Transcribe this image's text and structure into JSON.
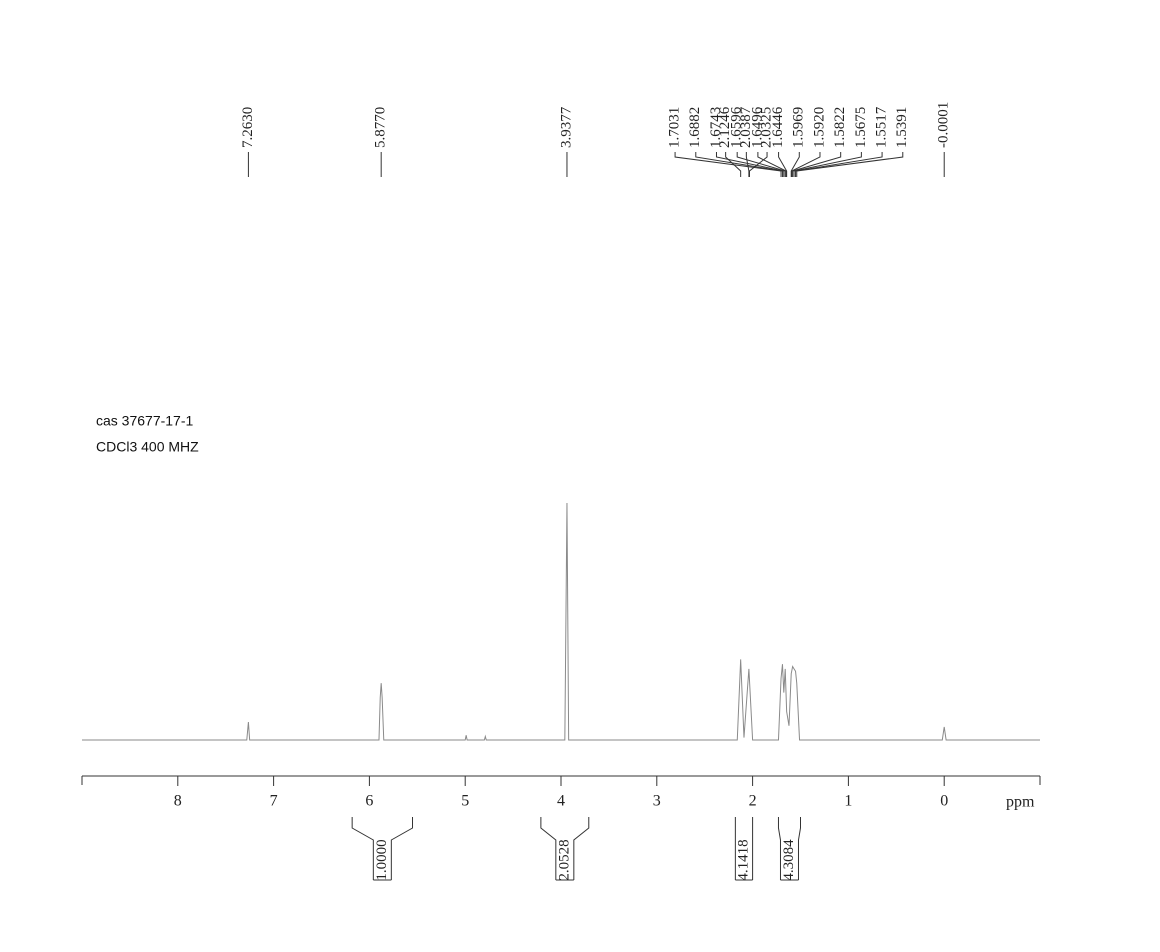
{
  "chart_data": {
    "type": "line",
    "annotations": [
      "cas  37677-17-1",
      "CDCl3 400 MHZ"
    ],
    "x_label": "ppm",
    "xlim": [
      9,
      -1
    ],
    "xticks": [
      8,
      7,
      6,
      5,
      4,
      3,
      2,
      1,
      0
    ],
    "ylim": [
      0,
      100
    ],
    "color": "#8a8a8a",
    "x": [
      9.0,
      7.28,
      7.263,
      7.25,
      5.9,
      5.887,
      5.877,
      5.867,
      5.85,
      5.0,
      4.99,
      4.98,
      4.8,
      4.79,
      4.78,
      3.96,
      3.9377,
      3.92,
      2.16,
      2.1246,
      2.09,
      2.0387,
      2.0,
      1.73,
      1.7031,
      1.6882,
      1.6743,
      1.6596,
      1.6446,
      1.62,
      1.5969,
      1.5822,
      1.5675,
      1.5517,
      1.5391,
      1.51,
      0.02,
      -0.0001,
      -0.02,
      -1.0
    ],
    "values": [
      0,
      0,
      7.6,
      0,
      0,
      18,
      24,
      18,
      0,
      0,
      2,
      0,
      0,
      1.5,
      0,
      0,
      100,
      0,
      0,
      34,
      1,
      30,
      0,
      0,
      26,
      32,
      20,
      30,
      12,
      6,
      28,
      31,
      30,
      29,
      24,
      0,
      0,
      5.5,
      0,
      0
    ],
    "peak_labels": [
      {
        "value": 7.263,
        "label": "7.2630"
      },
      {
        "value": 5.877,
        "label": "5.8770"
      },
      {
        "value": 3.9377,
        "label": "3.9377"
      },
      {
        "value": 2.1246,
        "label": "2.1246"
      },
      {
        "value": 2.0387,
        "label": "2.0387"
      },
      {
        "value": 2.0325,
        "label": "2.0325"
      },
      {
        "value": 1.7031,
        "label": "1.7031"
      },
      {
        "value": 1.6882,
        "label": "1.6882"
      },
      {
        "value": 1.6743,
        "label": "1.6743"
      },
      {
        "value": 1.6596,
        "label": "1.6596"
      },
      {
        "value": 1.6496,
        "label": "1.6496"
      },
      {
        "value": 1.6446,
        "label": "1.6446"
      },
      {
        "value": 1.5969,
        "label": "1.5969"
      },
      {
        "value": 1.592,
        "label": "1.5920"
      },
      {
        "value": 1.5822,
        "label": "1.5822"
      },
      {
        "value": 1.5675,
        "label": "1.5675"
      },
      {
        "value": 1.5517,
        "label": "1.5517"
      },
      {
        "value": 1.5391,
        "label": "1.5391"
      },
      {
        "value": -0.0001,
        "label": "-0.0001"
      }
    ],
    "integrals": [
      {
        "range": [
          6.18,
          5.55
        ],
        "value": 1,
        "label": "1.0000"
      },
      {
        "range": [
          4.21,
          3.71
        ],
        "value": 2.0528,
        "label": "2.0528"
      },
      {
        "range": [
          2.18,
          2.0
        ],
        "value": 4.1418,
        "label": "4.1418"
      },
      {
        "range": [
          1.73,
          1.5
        ],
        "value": 4.3084,
        "label": "4.3084"
      }
    ]
  }
}
